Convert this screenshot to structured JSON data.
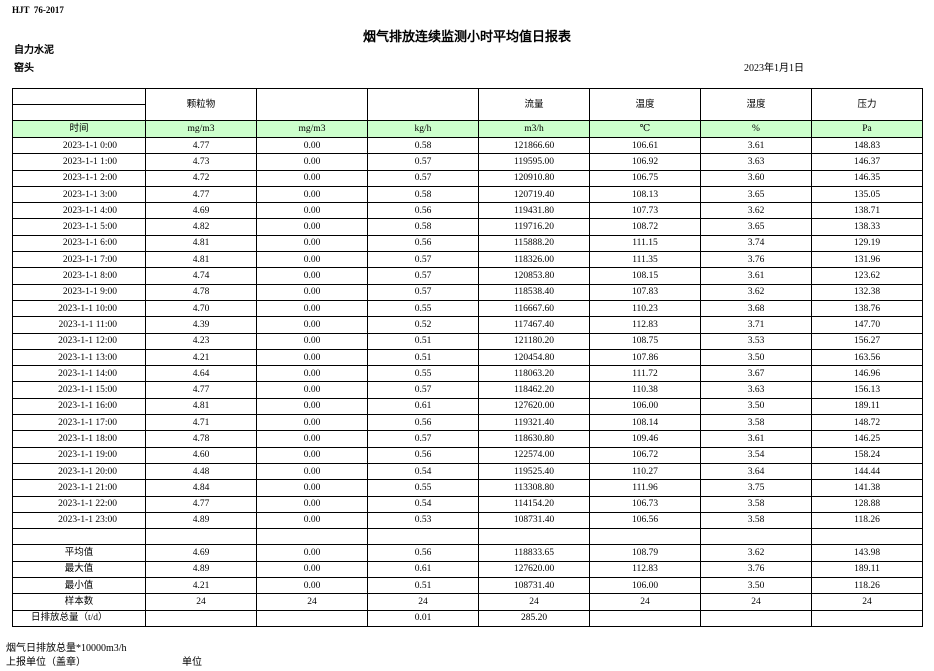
{
  "header": {
    "standard": "HJT  76-2017",
    "title": "烟气排放连续监测小时平均值日报表",
    "company": "自力水泥",
    "location": "窑头",
    "date": "2023年1月1日"
  },
  "table": {
    "columns": [
      null,
      "颗粒物",
      null,
      null,
      "流量",
      "温度",
      "湿度",
      "压力"
    ],
    "units": [
      "时间",
      "mg/m3",
      "mg/m3",
      "kg/h",
      "m3/h",
      "℃",
      "%",
      "Pa"
    ],
    "rows": [
      [
        "2023-1-1 0:00",
        "4.77",
        "0.00",
        "0.58",
        "121866.60",
        "106.61",
        "3.61",
        "148.83"
      ],
      [
        "2023-1-1 1:00",
        "4.73",
        "0.00",
        "0.57",
        "119595.00",
        "106.92",
        "3.63",
        "146.37"
      ],
      [
        "2023-1-1 2:00",
        "4.72",
        "0.00",
        "0.57",
        "120910.80",
        "106.75",
        "3.60",
        "146.35"
      ],
      [
        "2023-1-1 3:00",
        "4.77",
        "0.00",
        "0.58",
        "120719.40",
        "108.13",
        "3.65",
        "135.05"
      ],
      [
        "2023-1-1 4:00",
        "4.69",
        "0.00",
        "0.56",
        "119431.80",
        "107.73",
        "3.62",
        "138.71"
      ],
      [
        "2023-1-1 5:00",
        "4.82",
        "0.00",
        "0.58",
        "119716.20",
        "108.72",
        "3.65",
        "138.33"
      ],
      [
        "2023-1-1 6:00",
        "4.81",
        "0.00",
        "0.56",
        "115888.20",
        "111.15",
        "3.74",
        "129.19"
      ],
      [
        "2023-1-1 7:00",
        "4.81",
        "0.00",
        "0.57",
        "118326.00",
        "111.35",
        "3.76",
        "131.96"
      ],
      [
        "2023-1-1 8:00",
        "4.74",
        "0.00",
        "0.57",
        "120853.80",
        "108.15",
        "3.61",
        "123.62"
      ],
      [
        "2023-1-1 9:00",
        "4.78",
        "0.00",
        "0.57",
        "118538.40",
        "107.83",
        "3.62",
        "132.38"
      ],
      [
        "2023-1-1 10:00",
        "4.70",
        "0.00",
        "0.55",
        "116667.60",
        "110.23",
        "3.68",
        "138.76"
      ],
      [
        "2023-1-1 11:00",
        "4.39",
        "0.00",
        "0.52",
        "117467.40",
        "112.83",
        "3.71",
        "147.70"
      ],
      [
        "2023-1-1 12:00",
        "4.23",
        "0.00",
        "0.51",
        "121180.20",
        "108.75",
        "3.53",
        "156.27"
      ],
      [
        "2023-1-1 13:00",
        "4.21",
        "0.00",
        "0.51",
        "120454.80",
        "107.86",
        "3.50",
        "163.56"
      ],
      [
        "2023-1-1 14:00",
        "4.64",
        "0.00",
        "0.55",
        "118063.20",
        "111.72",
        "3.67",
        "146.96"
      ],
      [
        "2023-1-1 15:00",
        "4.77",
        "0.00",
        "0.57",
        "118462.20",
        "110.38",
        "3.63",
        "156.13"
      ],
      [
        "2023-1-1 16:00",
        "4.81",
        "0.00",
        "0.61",
        "127620.00",
        "106.00",
        "3.50",
        "189.11"
      ],
      [
        "2023-1-1 17:00",
        "4.71",
        "0.00",
        "0.56",
        "119321.40",
        "108.14",
        "3.58",
        "148.72"
      ],
      [
        "2023-1-1 18:00",
        "4.78",
        "0.00",
        "0.57",
        "118630.80",
        "109.46",
        "3.61",
        "146.25"
      ],
      [
        "2023-1-1 19:00",
        "4.60",
        "0.00",
        "0.56",
        "122574.00",
        "106.72",
        "3.54",
        "158.24"
      ],
      [
        "2023-1-1 20:00",
        "4.48",
        "0.00",
        "0.54",
        "119525.40",
        "110.27",
        "3.64",
        "144.44"
      ],
      [
        "2023-1-1 21:00",
        "4.84",
        "0.00",
        "0.55",
        "113308.80",
        "111.96",
        "3.75",
        "141.38"
      ],
      [
        "2023-1-1 22:00",
        "4.77",
        "0.00",
        "0.54",
        "114154.20",
        "106.73",
        "3.58",
        "128.88"
      ],
      [
        "2023-1-1 23:00",
        "4.89",
        "0.00",
        "0.53",
        "108731.40",
        "106.56",
        "3.58",
        "118.26"
      ]
    ],
    "summary": [
      [
        "平均值",
        "4.69",
        "0.00",
        "0.56",
        "118833.65",
        "108.79",
        "3.62",
        "143.98"
      ],
      [
        "最大值",
        "4.89",
        "0.00",
        "0.61",
        "127620.00",
        "112.83",
        "3.76",
        "189.11"
      ],
      [
        "最小值",
        "4.21",
        "0.00",
        "0.51",
        "108731.40",
        "106.00",
        "3.50",
        "118.26"
      ],
      [
        "样本数",
        "24",
        "24",
        "24",
        "24",
        "24",
        "24",
        "24"
      ],
      [
        "日排放总量（t/d）",
        null,
        null,
        "0.01",
        "285.20",
        null,
        null,
        null
      ]
    ]
  },
  "footer": {
    "note": "烟气日排放总量*10000m3/h",
    "reporter": "上报单位（盖章）",
    "unit": "单位"
  }
}
